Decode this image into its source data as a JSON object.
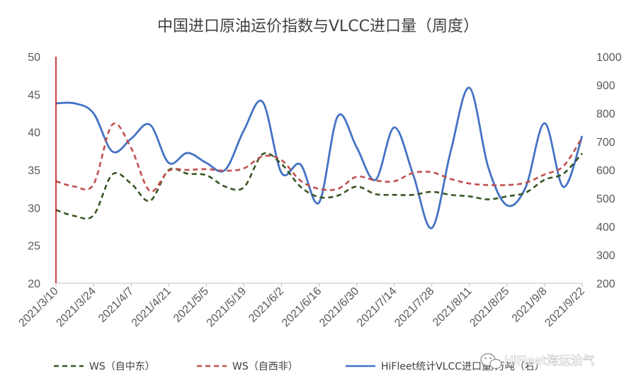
{
  "chart_data": {
    "type": "line",
    "title": "中国进口原油运价指数与VLCC进口量（周度）",
    "x_ticks": [
      "2021/3/10",
      "2021/3/24",
      "2021/4/7",
      "2021/4/21",
      "2021/5/5",
      "2021/5/19",
      "2021/6/2",
      "2021/6/16",
      "2021/6/30",
      "2021/7/14",
      "2021/7/28",
      "2021/8/11",
      "2021/8/25",
      "2021/9/8",
      "2021/9/22"
    ],
    "x": [
      "2021/3/10",
      "2021/3/17",
      "2021/3/24",
      "2021/3/31",
      "2021/4/7",
      "2021/4/14",
      "2021/4/21",
      "2021/4/28",
      "2021/5/5",
      "2021/5/12",
      "2021/5/19",
      "2021/5/26",
      "2021/6/2",
      "2021/6/9",
      "2021/6/16",
      "2021/6/23",
      "2021/6/30",
      "2021/7/7",
      "2021/7/14",
      "2021/7/21",
      "2021/7/28",
      "2021/8/4",
      "2021/8/11",
      "2021/8/18",
      "2021/8/25",
      "2021/9/1",
      "2021/9/8",
      "2021/9/15",
      "2021/9/22"
    ],
    "y_left": {
      "ticks": [
        "20",
        "25",
        "30",
        "35",
        "40",
        "45",
        "50"
      ],
      "ylim": [
        20,
        50
      ]
    },
    "y_right": {
      "ticks": [
        "200",
        "300",
        "400",
        "500",
        "600",
        "700",
        "800",
        "900",
        "1000"
      ],
      "ylim": [
        200,
        1000
      ]
    },
    "grid": false,
    "legend_position": "bottom",
    "series": [
      {
        "name": "WS（自中东）",
        "axis": "left",
        "color": "#375623",
        "dash": "dashed",
        "values": [
          29.7,
          28.9,
          29.0,
          34.4,
          33.2,
          30.9,
          35.0,
          34.5,
          34.3,
          32.8,
          32.7,
          37.1,
          35.8,
          32.8,
          31.4,
          31.6,
          32.8,
          31.8,
          31.7,
          31.7,
          32.1,
          31.7,
          31.5,
          31.1,
          31.5,
          32.0,
          33.7,
          34.5,
          37.2
        ]
      },
      {
        "name": "WS（自西非）",
        "axis": "left",
        "color": "#C0504D",
        "dash": "dashed",
        "values": [
          33.5,
          32.8,
          33.1,
          41.0,
          37.9,
          32.2,
          34.9,
          35.0,
          35.1,
          34.9,
          35.2,
          36.8,
          36.3,
          33.6,
          32.5,
          32.5,
          34.1,
          33.6,
          33.5,
          34.6,
          34.7,
          33.8,
          33.2,
          33.0,
          33.0,
          33.3,
          34.4,
          35.5,
          39.3
        ]
      },
      {
        "name": "HiFleet统计VLCC进口量/万吨（右）",
        "axis": "right",
        "color": "#4472C4",
        "dash": "solid",
        "values": [
          835,
          835,
          800,
          665,
          710,
          760,
          625,
          660,
          625,
          600,
          740,
          840,
          590,
          620,
          485,
          790,
          680,
          565,
          750,
          585,
          395,
          665,
          890,
          610,
          475,
          540,
          765,
          540,
          720
        ]
      }
    ]
  },
  "watermark": {
    "text": "HiFleet海运油气"
  }
}
